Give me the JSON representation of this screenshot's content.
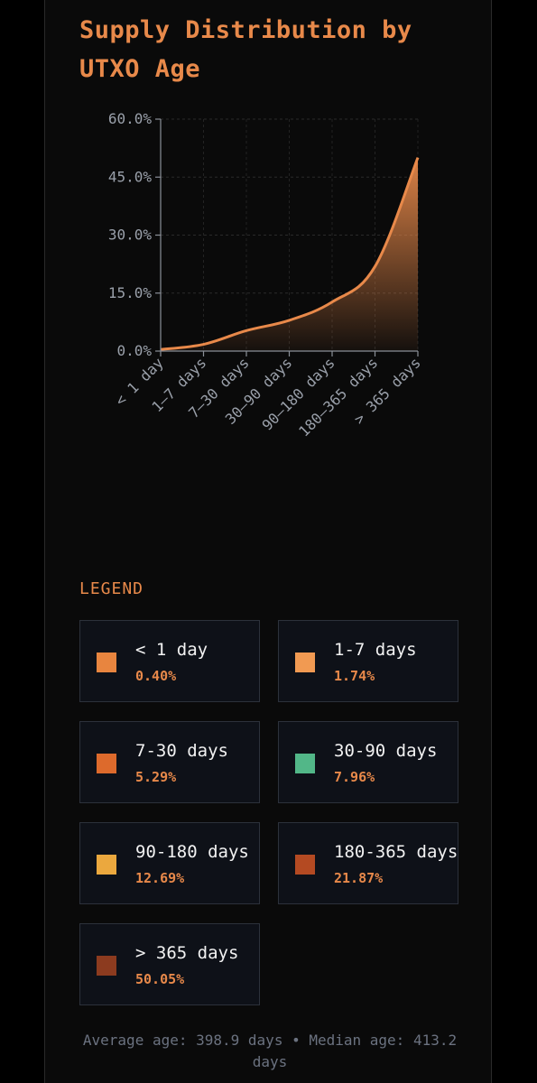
{
  "chart_data": {
    "type": "area",
    "title": "Supply Distribution by UTXO Age",
    "categories": [
      "< 1 day",
      "1–7 days",
      "7–30 days",
      "30–90 days",
      "90–180 days",
      "180–365 days",
      "> 365 days"
    ],
    "values": [
      0.4,
      1.74,
      5.29,
      7.96,
      12.69,
      21.87,
      50.05
    ],
    "ylim": [
      0,
      60
    ],
    "yticks": [
      0,
      15,
      30,
      45,
      60
    ],
    "ytick_labels": [
      "0.0%",
      "15.0%",
      "30.0%",
      "45.0%",
      "60.0%"
    ],
    "grid": true,
    "line_color": "#e8894a"
  },
  "legend": {
    "heading": "LEGEND",
    "items": [
      {
        "name": "< 1 day",
        "value": "0.40%",
        "color": "#e8853f"
      },
      {
        "name": "1-7 days",
        "value": "1.74%",
        "color": "#f19a52"
      },
      {
        "name": "7-30 days",
        "value": "5.29%",
        "color": "#dd6a2c"
      },
      {
        "name": "30-90 days",
        "value": "7.96%",
        "color": "#52b788"
      },
      {
        "name": "90-180 days",
        "value": "12.69%",
        "color": "#eba83e"
      },
      {
        "name": "180-365 days",
        "value": "21.87%",
        "color": "#b44a22"
      },
      {
        "name": "> 365 days",
        "value": "50.05%",
        "color": "#8c3b1f"
      }
    ]
  },
  "footer": {
    "text": "Average age: 398.9 days • Median age: 413.2 days"
  }
}
